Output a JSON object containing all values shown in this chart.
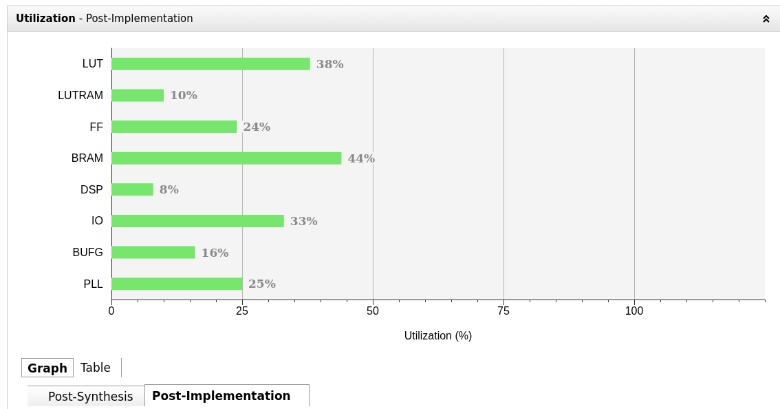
{
  "chart_data": {
    "type": "bar",
    "orientation": "horizontal",
    "title": "Utilization",
    "subtitle": "- Post-Implementation",
    "xlabel": "Utilization (%)",
    "categories": [
      "LUT",
      "LUTRAM",
      "FF",
      "BRAM",
      "DSP",
      "IO",
      "BUFG",
      "PLL"
    ],
    "values": [
      38,
      10,
      24,
      44,
      8,
      33,
      16,
      25
    ],
    "value_labels": [
      "38%",
      "10%",
      "24%",
      "44%",
      "8%",
      "33%",
      "16%",
      "25%"
    ],
    "color": "#77e66c",
    "xlim": [
      0,
      125
    ],
    "xticks": [
      0,
      25,
      50,
      75,
      100
    ],
    "grid": "x",
    "annotations": [
      "Graph",
      "Table",
      "Post-Synthesis",
      "Post-Implementation"
    ]
  }
}
